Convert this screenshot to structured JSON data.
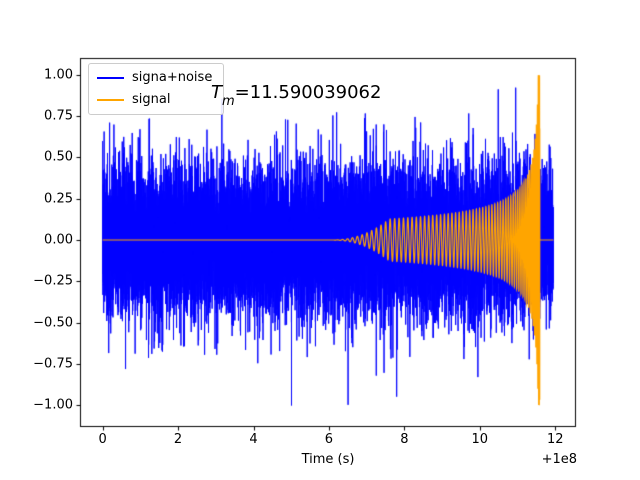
{
  "figure": {
    "background": "#ffffff"
  },
  "chart_data": {
    "type": "line",
    "title": "",
    "xlabel": "Time (s)",
    "ylabel": "",
    "x_offset_text": "+1e8",
    "grid": false,
    "legend_position": "upper left",
    "xlim": [
      -0.6,
      12.55
    ],
    "ylim": [
      -1.13,
      1.1
    ],
    "x_ticks": [
      {
        "value": 0,
        "label": "0"
      },
      {
        "value": 2,
        "label": "2"
      },
      {
        "value": 4,
        "label": "4"
      },
      {
        "value": 6,
        "label": "6"
      },
      {
        "value": 8,
        "label": "8"
      },
      {
        "value": 10,
        "label": "10"
      },
      {
        "value": 12,
        "label": "12"
      }
    ],
    "y_ticks": [
      {
        "value": 1.0,
        "label": "1.00"
      },
      {
        "value": 0.75,
        "label": "0.75"
      },
      {
        "value": 0.5,
        "label": "0.50"
      },
      {
        "value": 0.25,
        "label": "0.25"
      },
      {
        "value": 0.0,
        "label": "0.00"
      },
      {
        "value": -0.25,
        "label": "−0.25"
      },
      {
        "value": -0.5,
        "label": "−0.50"
      },
      {
        "value": -0.75,
        "label": "−0.75"
      },
      {
        "value": -1.0,
        "label": "−1.00"
      }
    ],
    "annotation": {
      "symbol": "T",
      "subscript": "m",
      "rest": "=11.590039062",
      "t_m_value": 11.590039062
    },
    "legend": {
      "entries": [
        {
          "label": "signa+noise",
          "color": "#0000ff"
        },
        {
          "label": "signal",
          "color": "#ffa500"
        }
      ]
    },
    "series": [
      {
        "name": "signa+noise",
        "color": "#0000ff",
        "line_width": 1,
        "generator": {
          "kind": "gaussian_noise_plus_signal",
          "seed": 7,
          "n_points": 14000,
          "t_start": 0,
          "t_end": 11.95,
          "noise_sigma": 0.3,
          "signal_mix": 0.25,
          "normalize_peak": 1.0
        },
        "visual_readout": {
          "solid_noise_band": [
            -0.45,
            0.45
          ],
          "extreme_spikes": [
            -1.0,
            1.0
          ]
        }
      },
      {
        "name": "signal",
        "color": "#ffa500",
        "line_width": 1.2,
        "generator": {
          "kind": "gw_chirp",
          "t_onset": 6.1,
          "t_merger": 11.590039062,
          "amp_coeff": 0.237,
          "amp_power": 0.45,
          "amp_cap": 1.0,
          "ramp_duration": 1.5,
          "freq_coeff": 14,
          "freq_power": 0.375
        },
        "envelope_readout": {
          "t": [
            6.5,
            7,
            8,
            9,
            10,
            11,
            11.4,
            11.55,
            11.59,
            11.95
          ],
          "amplitude": [
            0.01,
            0.05,
            0.13,
            0.16,
            0.19,
            0.3,
            0.5,
            1.0,
            1.0,
            0.0
          ]
        }
      }
    ]
  }
}
